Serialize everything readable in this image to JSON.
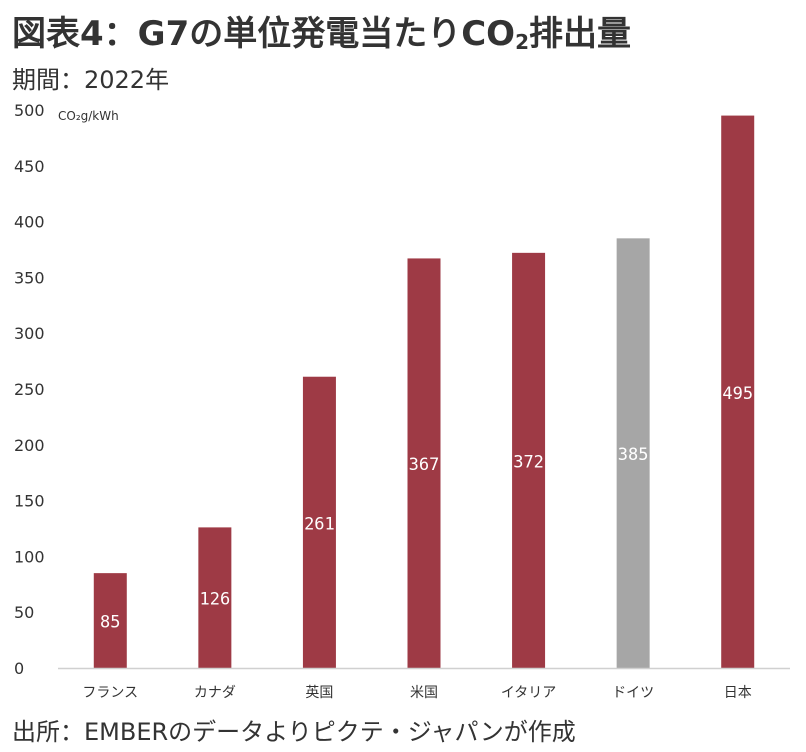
{
  "title": "図表4：G7の単位発電当たりCO",
  "title_subscript": "2",
  "title_suffix": "排出量",
  "period": "期間：2022年",
  "source": "出所：EMBERのデータよりピクテ・ジャパンが作成",
  "colors": {
    "default_bar": "#9e3a45",
    "highlight_bar": "#a6a6a6",
    "axis": "#d0d0d0"
  },
  "chart_data": {
    "type": "bar",
    "title": "",
    "xlabel": "",
    "ylabel": "CO₂g/kWh",
    "ylim": [
      0,
      500
    ],
    "yticks": [
      0,
      50,
      100,
      150,
      200,
      250,
      300,
      350,
      400,
      450,
      500
    ],
    "categories": [
      "フランス",
      "カナダ",
      "英国",
      "米国",
      "イタリア",
      "ドイツ",
      "日本"
    ],
    "values": [
      85,
      126,
      261,
      367,
      372,
      385,
      495
    ],
    "data_labels": [
      "85",
      "126",
      "261",
      "367",
      "372",
      "385",
      "495"
    ],
    "highlight_index": 5,
    "grid": false,
    "legend": "none"
  }
}
